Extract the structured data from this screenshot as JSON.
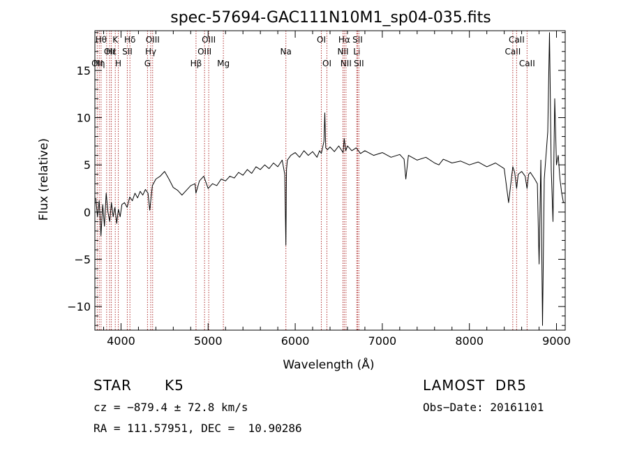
{
  "chart_data": {
    "type": "line",
    "title": "spec-57694-GAC111N10M1_sp04-035.fits",
    "xlabel": "Wavelength (Å)",
    "ylabel": "Flux (relative)",
    "xlim": [
      3700,
      9100
    ],
    "ylim": [
      -12.5,
      19.2
    ],
    "xticks": [
      4000,
      5000,
      6000,
      7000,
      8000,
      9000
    ],
    "xtick_labels": [
      "4000",
      "5000",
      "6000",
      "7000",
      "8000",
      "9000"
    ],
    "yticks": [
      -10,
      -5,
      0,
      5,
      10,
      15
    ],
    "ytick_labels": [
      "−10",
      "−5",
      "0",
      "5",
      "10",
      "15"
    ],
    "grid": false,
    "series": [
      {
        "color": "#000000",
        "x": [
          3710,
          3730,
          3750,
          3770,
          3790,
          3810,
          3830,
          3850,
          3870,
          3890,
          3910,
          3930,
          3950,
          3970,
          3990,
          4010,
          4040,
          4070,
          4100,
          4130,
          4160,
          4190,
          4220,
          4250,
          4280,
          4310,
          4330,
          4360,
          4400,
          4450,
          4500,
          4550,
          4600,
          4650,
          4700,
          4750,
          4800,
          4850,
          4860,
          4900,
          4950,
          5000,
          5050,
          5100,
          5150,
          5200,
          5250,
          5300,
          5350,
          5400,
          5450,
          5500,
          5550,
          5600,
          5650,
          5700,
          5750,
          5800,
          5850,
          5880,
          5893,
          5900,
          5910,
          5950,
          6000,
          6050,
          6100,
          6150,
          6200,
          6250,
          6280,
          6300,
          6330,
          6340,
          6350,
          6370,
          6400,
          6450,
          6500,
          6550,
          6563,
          6580,
          6600,
          6650,
          6700,
          6750,
          6800,
          6900,
          7000,
          7100,
          7200,
          7250,
          7270,
          7300,
          7400,
          7500,
          7600,
          7650,
          7700,
          7800,
          7900,
          8000,
          8100,
          8200,
          8300,
          8400,
          8450,
          8498,
          8520,
          8542,
          8560,
          8600,
          8640,
          8662,
          8680,
          8700,
          8750,
          8780,
          8800,
          8820,
          8840,
          8860,
          8880,
          8900,
          8920,
          8940,
          8960,
          8980,
          9000,
          9020,
          9040,
          9060,
          9080
        ],
        "y": [
          1.5,
          -0.5,
          1.2,
          -2.5,
          0.8,
          -1.5,
          2.0,
          0.0,
          -1.0,
          1.0,
          -0.5,
          0.5,
          -1.2,
          0.3,
          -0.5,
          0.8,
          1.0,
          0.5,
          1.6,
          1.2,
          2.0,
          1.5,
          2.2,
          1.8,
          2.4,
          2.0,
          0.2,
          2.8,
          3.5,
          3.8,
          4.3,
          3.5,
          2.6,
          2.3,
          1.8,
          2.3,
          2.8,
          3.0,
          2.0,
          3.3,
          3.8,
          2.5,
          3.0,
          2.8,
          3.5,
          3.3,
          3.8,
          3.6,
          4.2,
          3.9,
          4.5,
          4.1,
          4.8,
          4.5,
          5.0,
          4.6,
          5.2,
          4.8,
          5.5,
          4.0,
          -3.5,
          4.5,
          5.5,
          6.0,
          6.3,
          5.8,
          6.5,
          6.0,
          6.4,
          5.8,
          6.5,
          6.2,
          7.5,
          10.5,
          6.8,
          6.6,
          6.9,
          6.4,
          7.0,
          6.3,
          7.8,
          6.5,
          7.0,
          6.5,
          6.8,
          6.2,
          6.5,
          6.0,
          6.3,
          5.8,
          6.1,
          5.6,
          3.5,
          6.0,
          5.5,
          5.8,
          5.2,
          5.0,
          5.6,
          5.2,
          5.4,
          5.0,
          5.3,
          4.8,
          5.2,
          4.6,
          1.0,
          4.8,
          4.2,
          2.5,
          4.0,
          4.3,
          3.8,
          2.5,
          4.0,
          4.2,
          3.5,
          3.0,
          -5.5,
          5.5,
          -12.0,
          3.5,
          6.0,
          8.5,
          19.0,
          4.5,
          -1.0,
          12.0,
          5.0,
          6.0,
          3.5,
          2.0,
          1.0
        ]
      }
    ],
    "lines": [
      {
        "x": 3727,
        "label": "OII",
        "row": 2
      },
      {
        "x": 3750,
        "label": "Hη",
        "row": 2
      },
      {
        "x": 3771,
        "label": "Hθ",
        "row": 0
      },
      {
        "x": 3835,
        "label": "",
        "row": 0
      },
      {
        "x": 3869,
        "label": "OII",
        "row": 1
      },
      {
        "x": 3889,
        "label": "Hε",
        "row": 1
      },
      {
        "x": 3934,
        "label": "K",
        "row": 0
      },
      {
        "x": 3969,
        "label": "H",
        "row": 2
      },
      {
        "x": 4072,
        "label": "SII",
        "row": 1
      },
      {
        "x": 4102,
        "label": "Hδ",
        "row": 0
      },
      {
        "x": 4304,
        "label": "G",
        "row": 2
      },
      {
        "x": 4341,
        "label": "Hγ",
        "row": 1
      },
      {
        "x": 4363,
        "label": "OIII",
        "row": 0
      },
      {
        "x": 4861,
        "label": "Hβ",
        "row": 2
      },
      {
        "x": 4959,
        "label": "OIII",
        "row": 1
      },
      {
        "x": 5007,
        "label": "OIII",
        "row": 0
      },
      {
        "x": 5175,
        "label": "Mg",
        "row": 2
      },
      {
        "x": 5893,
        "label": "Na",
        "row": 1
      },
      {
        "x": 6300,
        "label": "OI",
        "row": 0
      },
      {
        "x": 6364,
        "label": "OI",
        "row": 2
      },
      {
        "x": 6548,
        "label": "NII",
        "row": 1
      },
      {
        "x": 6563,
        "label": "Hα",
        "row": 0
      },
      {
        "x": 6583,
        "label": "NII",
        "row": 2
      },
      {
        "x": 6707,
        "label": "Li",
        "row": 1
      },
      {
        "x": 6716,
        "label": "SII",
        "row": 0
      },
      {
        "x": 6731,
        "label": "SII",
        "row": 2
      },
      {
        "x": 8498,
        "label": "CaII",
        "row": 1
      },
      {
        "x": 8542,
        "label": "CaII",
        "row": 0
      },
      {
        "x": 8662,
        "label": "CaII",
        "row": 2
      }
    ]
  },
  "info": {
    "object_class": "STAR",
    "subclass": "K5",
    "survey": "LAMOST  DR5",
    "cz": "cz = −879.4 ± 72.8 km/s",
    "obs_date": "Obs−Date: 20161101",
    "radec": "RA = 111.57951, DEC =  10.90286"
  }
}
